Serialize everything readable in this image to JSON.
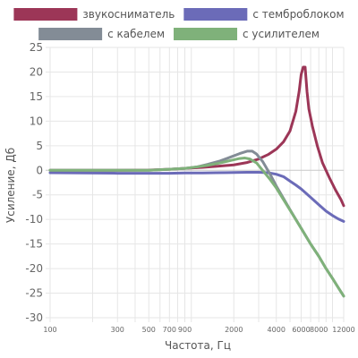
{
  "chart_data": {
    "type": "line",
    "xlabel": "Частота, Гц",
    "ylabel": "Усиление, Дб",
    "x_scale": "log",
    "xlim": [
      100,
      12000
    ],
    "ylim": [
      -30,
      25
    ],
    "y_ticks": [
      -30,
      -25,
      -20,
      -15,
      -10,
      -5,
      0,
      5,
      10,
      15,
      20,
      25
    ],
    "x_ticks": [
      100,
      300,
      500,
      700,
      900,
      2000,
      4000,
      6000,
      8000,
      12000
    ],
    "x_tick_labels": [
      "100",
      "300",
      "500",
      "700",
      "900",
      "2000",
      "4000",
      "6000",
      "8000",
      "12000"
    ],
    "minor_x_gridlines": [
      200,
      300,
      400,
      500,
      600,
      700,
      800,
      900,
      1000,
      2000,
      3000,
      4000,
      5000,
      6000,
      7000,
      8000,
      9000,
      10000
    ],
    "grid": true,
    "legend_position": "top",
    "series": [
      {
        "name": "звукосниматель",
        "color": "#9c3657",
        "points": [
          [
            100,
            0
          ],
          [
            300,
            0
          ],
          [
            500,
            0.05
          ],
          [
            700,
            0.2
          ],
          [
            900,
            0.4
          ],
          [
            1200,
            0.6
          ],
          [
            1500,
            0.8
          ],
          [
            2000,
            1.1
          ],
          [
            2500,
            1.6
          ],
          [
            3000,
            2.3
          ],
          [
            3500,
            3.2
          ],
          [
            4000,
            4.3
          ],
          [
            4500,
            5.8
          ],
          [
            5000,
            8
          ],
          [
            5500,
            12
          ],
          [
            5800,
            16
          ],
          [
            6000,
            19.5
          ],
          [
            6200,
            21
          ],
          [
            6400,
            21
          ],
          [
            6600,
            16
          ],
          [
            6800,
            12.5
          ],
          [
            7200,
            9
          ],
          [
            7800,
            5
          ],
          [
            8500,
            1.5
          ],
          [
            9500,
            -1.5
          ],
          [
            10500,
            -4
          ],
          [
            11500,
            -6
          ],
          [
            12000,
            -7.2
          ]
        ]
      },
      {
        "name": "с темброблоком",
        "color": "#6b6bb8",
        "points": [
          [
            100,
            -0.5
          ],
          [
            300,
            -0.6
          ],
          [
            500,
            -0.6
          ],
          [
            700,
            -0.6
          ],
          [
            900,
            -0.55
          ],
          [
            1200,
            -0.55
          ],
          [
            1500,
            -0.5
          ],
          [
            2000,
            -0.45
          ],
          [
            2500,
            -0.4
          ],
          [
            3000,
            -0.4
          ],
          [
            3500,
            -0.5
          ],
          [
            4000,
            -0.8
          ],
          [
            4500,
            -1.3
          ],
          [
            5000,
            -2.2
          ],
          [
            5500,
            -3
          ],
          [
            6000,
            -3.8
          ],
          [
            7000,
            -5.5
          ],
          [
            8000,
            -7
          ],
          [
            9000,
            -8.3
          ],
          [
            10000,
            -9.2
          ],
          [
            11000,
            -9.9
          ],
          [
            12000,
            -10.4
          ]
        ]
      },
      {
        "name": "с кабелем",
        "color": "#838c96",
        "points": [
          [
            100,
            0
          ],
          [
            300,
            0
          ],
          [
            500,
            0
          ],
          [
            700,
            0.2
          ],
          [
            900,
            0.4
          ],
          [
            1100,
            0.7
          ],
          [
            1300,
            1.2
          ],
          [
            1600,
            1.9
          ],
          [
            1900,
            2.7
          ],
          [
            2200,
            3.4
          ],
          [
            2500,
            3.9
          ],
          [
            2700,
            3.9
          ],
          [
            2900,
            3.3
          ],
          [
            3200,
            1.8
          ],
          [
            3600,
            -0.7
          ],
          [
            4000,
            -3.2
          ],
          [
            5000,
            -8
          ],
          [
            6000,
            -11.8
          ],
          [
            7000,
            -15
          ],
          [
            8000,
            -17.5
          ],
          [
            9000,
            -20
          ],
          [
            10000,
            -22
          ],
          [
            11000,
            -23.9
          ],
          [
            12000,
            -25.6
          ]
        ]
      },
      {
        "name": "с усилителем",
        "color": "#7fb17a",
        "points": [
          [
            100,
            0
          ],
          [
            300,
            0
          ],
          [
            500,
            0
          ],
          [
            700,
            0.2
          ],
          [
            900,
            0.4
          ],
          [
            1100,
            0.7
          ],
          [
            1300,
            1.0
          ],
          [
            1600,
            1.5
          ],
          [
            1900,
            2.0
          ],
          [
            2200,
            2.4
          ],
          [
            2400,
            2.5
          ],
          [
            2600,
            2.3
          ],
          [
            2900,
            1.5
          ],
          [
            3200,
            0
          ],
          [
            3600,
            -1.8
          ],
          [
            4000,
            -3.6
          ],
          [
            5000,
            -8.1
          ],
          [
            6000,
            -11.8
          ],
          [
            7000,
            -15
          ],
          [
            8000,
            -17.5
          ],
          [
            9000,
            -20
          ],
          [
            10000,
            -22
          ],
          [
            11000,
            -23.9
          ],
          [
            12000,
            -25.6
          ]
        ]
      }
    ]
  }
}
